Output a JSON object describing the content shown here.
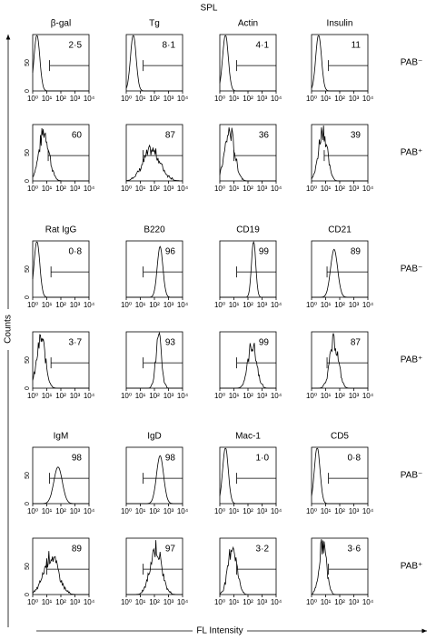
{
  "title": "SPL",
  "y_label": "Counts",
  "x_label": "FL Intensity",
  "row_labels": [
    "PAB⁻",
    "PAB⁺"
  ],
  "x_tick_labels": [
    "10⁰",
    "10¹",
    "10²",
    "10³",
    "10⁴"
  ],
  "y_tick_labels": [
    "0",
    "50"
  ],
  "blocks": [
    {
      "markers": [
        "β-gal",
        "Tg",
        "Actin",
        "Insulin"
      ],
      "rows": [
        [
          "2·5",
          "8·1",
          "4·1",
          "11"
        ],
        [
          "60",
          "87",
          "36",
          "39"
        ]
      ]
    },
    {
      "markers": [
        "Rat IgG",
        "B220",
        "CD19",
        "CD21"
      ],
      "rows": [
        [
          "0·8",
          "96",
          "99",
          "89"
        ],
        [
          "3·7",
          "93",
          "99",
          "87"
        ]
      ]
    },
    {
      "markers": [
        "IgM",
        "IgD",
        "Mac-1",
        "CD5"
      ],
      "rows": [
        [
          "98",
          "98",
          "1·0",
          "0·8"
        ],
        [
          "89",
          "97",
          "3·2",
          "3·6"
        ]
      ]
    }
  ]
}
